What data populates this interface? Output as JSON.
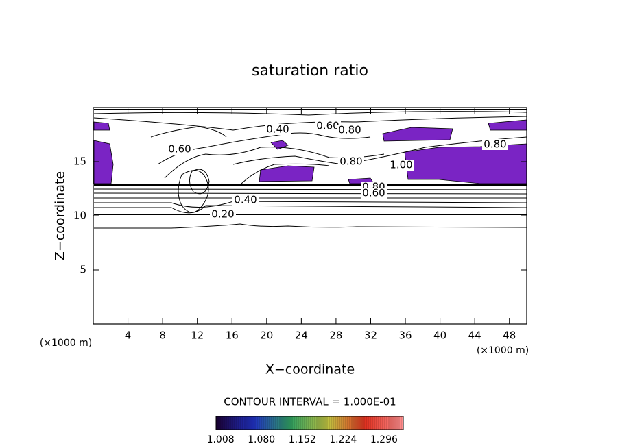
{
  "chart_data": {
    "type": "contour",
    "title": "saturation ratio",
    "x_label": "X−coordinate",
    "y_label": "Z−coordinate",
    "x_unit": "(×1000 m)",
    "y_unit": "(×1000 m)",
    "xlim": [
      0,
      50
    ],
    "xticks": [
      4,
      8,
      12,
      16,
      20,
      24,
      28,
      32,
      36,
      40,
      44,
      48
    ],
    "ylim": [
      0,
      20
    ],
    "yticks": [
      5,
      10,
      15
    ],
    "contour_labels": [
      {
        "value": 0.4,
        "label": "0.40"
      },
      {
        "value": 0.6,
        "label": "0.60"
      },
      {
        "value": 0.8,
        "label": "0.80"
      },
      {
        "value": 0.8,
        "label": "0.80"
      },
      {
        "value": 0.6,
        "label": "0.60"
      },
      {
        "value": 0.8,
        "label": "0.80"
      },
      {
        "value": 1.0,
        "label": "1.00"
      },
      {
        "value": 0.8,
        "label": "0.80"
      },
      {
        "value": 0.6,
        "label": "0.60"
      },
      {
        "value": 0.4,
        "label": "0.40"
      },
      {
        "value": 0.2,
        "label": "0.20"
      }
    ],
    "annotation": "CONTOUR INTERVAL = 1.000E-01",
    "colorbar": {
      "lim": [
        1.0,
        1.33
      ],
      "colors": [
        "#1a0033",
        "#2030c0",
        "#30a060",
        "#c0c040",
        "#e03020",
        "#ff9090"
      ],
      "ticks": [
        1.008,
        {
          "value": 1.08,
          "label": "1.080"
        },
        1.152,
        1.224,
        1.296
      ]
    },
    "fill_color": "#7a24c4"
  }
}
